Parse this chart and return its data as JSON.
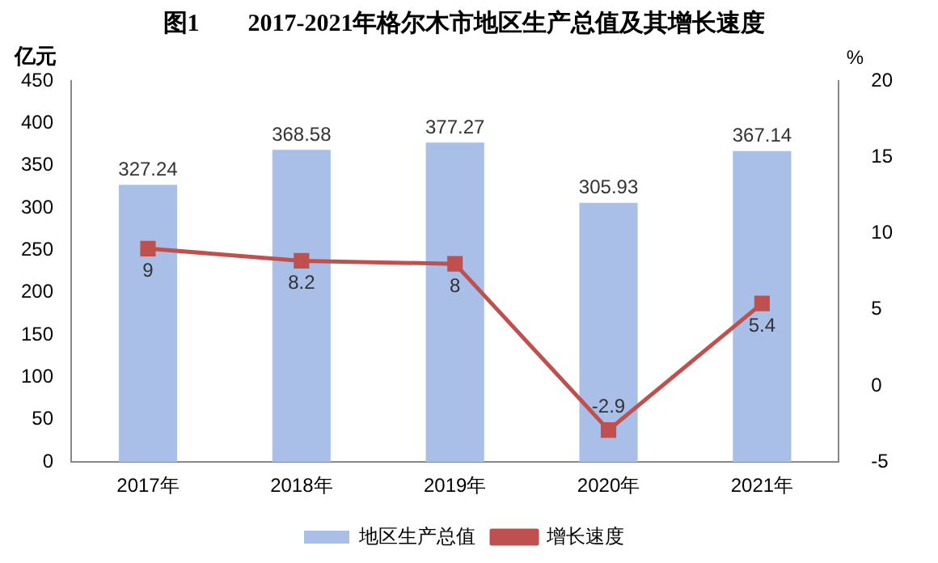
{
  "chart_data": {
    "type": "bar",
    "title": "图1　　2017-2021年格尔木市地区生产总值及其增长速度",
    "ylabel": "亿元",
    "y2label": "%",
    "categories": [
      "2017年",
      "2018年",
      "2019年",
      "2020年",
      "2021年"
    ],
    "series": [
      {
        "name": "地区生产总值",
        "color": "#a9bfe8",
        "values": [
          327.24,
          368.58,
          377.27,
          305.93,
          367.14
        ]
      },
      {
        "name": "增长速度",
        "type": "line",
        "axis": "y2",
        "color": "#c0504d",
        "values": [
          9,
          8.2,
          8,
          -2.9,
          5.4
        ]
      }
    ],
    "ylim": [
      0,
      450
    ],
    "yticks": [
      0,
      50,
      100,
      150,
      200,
      250,
      300,
      350,
      400,
      450
    ],
    "y2lim": [
      -5,
      20
    ],
    "y2ticks": [
      -5,
      0,
      5,
      10,
      15,
      20
    ],
    "data_labels": true,
    "legend": "bottom",
    "marker": "square",
    "grid": false
  }
}
